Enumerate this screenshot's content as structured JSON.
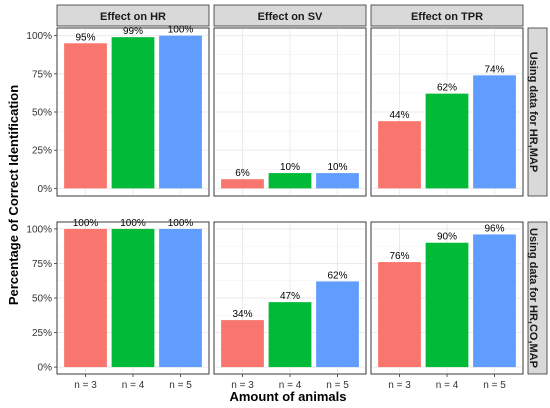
{
  "chart_data": {
    "type": "bar",
    "xlabel": "Amount of animals",
    "ylabel": "Percentage of Correct Identification",
    "categories": [
      "n = 3",
      "n = 4",
      "n = 5"
    ],
    "ylim": [
      0,
      100
    ],
    "yticks": [
      0,
      25,
      50,
      75,
      100
    ],
    "ytick_labels": [
      "0%",
      "25%",
      "50%",
      "75%",
      "100%"
    ],
    "bar_colors": [
      "#f8766d",
      "#00ba38",
      "#619cff"
    ],
    "grid": true,
    "columns": [
      "Effect on HR",
      "Effect on SV",
      "Effect on TPR"
    ],
    "rows": [
      "Using data for HR,MAP",
      "Using data for HR,CO,MAP"
    ],
    "panels": [
      [
        {
          "values": [
            95,
            99,
            100
          ],
          "labels": [
            "95%",
            "99%",
            "100%"
          ]
        },
        {
          "values": [
            6,
            10,
            10
          ],
          "labels": [
            "6%",
            "10%",
            "10%"
          ]
        },
        {
          "values": [
            44,
            62,
            74
          ],
          "labels": [
            "44%",
            "62%",
            "74%"
          ]
        }
      ],
      [
        {
          "values": [
            100,
            100,
            100
          ],
          "labels": [
            "100%",
            "100%",
            "100%"
          ]
        },
        {
          "values": [
            34,
            47,
            62
          ],
          "labels": [
            "34%",
            "47%",
            "62%"
          ]
        },
        {
          "values": [
            76,
            90,
            96
          ],
          "labels": [
            "76%",
            "90%",
            "96%"
          ]
        }
      ]
    ]
  }
}
